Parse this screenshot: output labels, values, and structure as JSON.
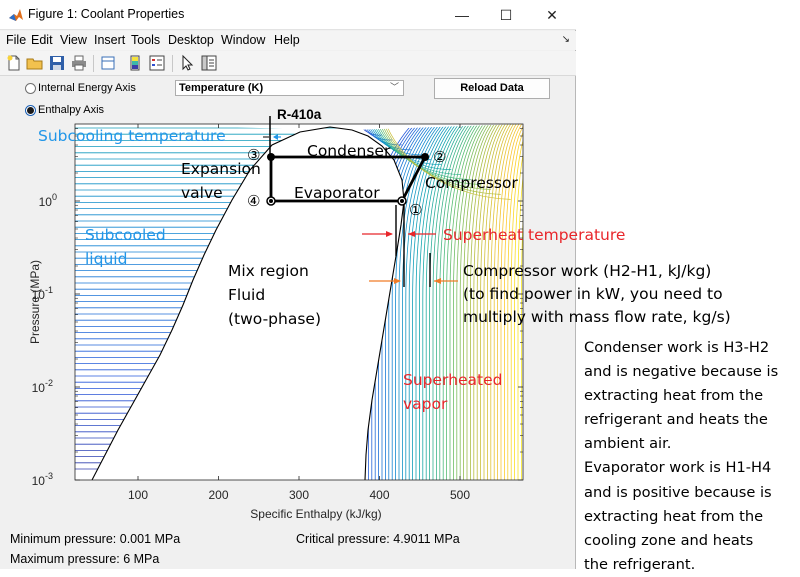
{
  "window": {
    "title": "Figure 1: Coolant Properties",
    "controls": {
      "minimize": "—",
      "maximize": "☐",
      "close": "✕"
    }
  },
  "menu": [
    "File",
    "Edit",
    "View",
    "Insert",
    "Tools",
    "Desktop",
    "Window",
    "Help"
  ],
  "toolbar_icons": [
    "new-figure-icon",
    "open-file-icon",
    "save-icon",
    "print-icon",
    "print-preview-icon",
    "colorbar-icon",
    "legend-icon",
    "pointer-icon",
    "property-inspector-icon"
  ],
  "controls": {
    "radio_internal_energy": "Internal Energy Axis",
    "radio_enthalpy": "Enthalpy Axis",
    "selected_axis": "Enthalpy Axis",
    "property_select": "Temperature (K)",
    "reload_button": "Reload Data"
  },
  "plot": {
    "title": "R-410a",
    "ylabel": "Pressure (MPa)",
    "xlabel": "Specific Enthalpy (kJ/kg)",
    "x_ticks": [
      "100",
      "200",
      "300",
      "400",
      "500"
    ],
    "y_ticks": [
      {
        "base": "10",
        "exp": "0"
      },
      {
        "base": "10",
        "exp": "-1"
      },
      {
        "base": "10",
        "exp": "-2"
      },
      {
        "base": "10",
        "exp": "-3"
      }
    ],
    "xlim": [
      35,
      575
    ],
    "ylim_log10": [
      -3,
      0.8
    ],
    "cycle_points": [
      {
        "label": "①",
        "h": 430,
        "p": 0.9
      },
      {
        "label": "②",
        "h": 460,
        "p": 2.6
      },
      {
        "label": "③",
        "h": 265,
        "p": 2.6
      },
      {
        "label": "④",
        "h": 265,
        "p": 0.9
      }
    ],
    "colors": {
      "accent_blue": "#2196e8",
      "accent_red": "#e8262b",
      "arrow_orange": "#f07c28",
      "cycle": "#000000"
    }
  },
  "annotations": {
    "subcooling": "Subcooling temperature",
    "condenser": "Condenser",
    "expansion_1": "Expansion",
    "expansion_2": "valve",
    "evaporator": "Evaporator",
    "compressor": "Compressor",
    "p1": "①",
    "p2": "②",
    "p3": "③",
    "p4": "④",
    "subcooled_1": "Subcooled",
    "subcooled_2": "liquid",
    "superheat": "Superheat temperature",
    "compressor_work_1": "Compressor work (H2-H1, kJ/kg)",
    "compressor_work_2": "(to find power in kW, you need to",
    "compressor_work_3": "multiply with mass flow rate, kg/s)",
    "mix_1": "Mix region",
    "mix_2": "Fluid",
    "mix_3": "(two-phase)",
    "superheated_1": "Superheated",
    "superheated_2": "vapor"
  },
  "status": {
    "min_pressure": "Minimum pressure: 0.001 MPa",
    "max_pressure": "Maximum pressure: 6 MPa",
    "critical_pressure": "Critical pressure: 4.9011 MPa"
  },
  "side_note": [
    "Condenser work is H3-H2",
    "and is negative because is",
    "extracting heat from the",
    "refrigerant and heats the",
    "ambient air.",
    "Evaporator work is H1-H4",
    "and is positive because is",
    "extracting heat from the",
    "cooling zone and heats",
    "the refrigerant."
  ]
}
